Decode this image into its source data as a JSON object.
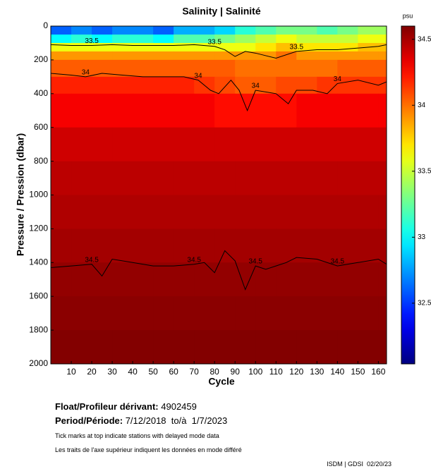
{
  "chart_data": {
    "type": "heatmap",
    "title": "Salinity | Salinité",
    "colorbar_label": "psu",
    "xlabel": "Cycle",
    "ylabel": "Pressure / Pression (dbar)",
    "xlim": [
      0,
      164
    ],
    "ylim": [
      2000,
      0
    ],
    "xticks": [
      10,
      20,
      30,
      40,
      50,
      60,
      70,
      80,
      90,
      100,
      110,
      120,
      130,
      140,
      150,
      160
    ],
    "yticks": [
      0,
      200,
      400,
      600,
      800,
      1000,
      1200,
      1400,
      1600,
      1800,
      2000
    ],
    "colormap": "jet",
    "clim": [
      32.04,
      34.6
    ],
    "cticks": [
      32.5,
      33,
      33.5,
      34,
      34.5
    ],
    "x_bins": [
      0,
      10,
      20,
      30,
      40,
      50,
      60,
      70,
      80,
      90,
      100,
      110,
      120,
      130,
      140,
      150,
      160,
      164
    ],
    "y_bins": [
      0,
      50,
      100,
      150,
      200,
      300,
      400,
      600,
      800,
      1000,
      1200,
      1400,
      1600,
      1800,
      2000
    ],
    "values": [
      [
        32.6,
        32.7,
        32.6,
        32.7,
        32.7,
        32.6,
        32.8,
        32.8,
        32.9,
        33.1,
        33.2,
        33.3,
        33.3,
        33.2,
        33.3,
        33.4,
        33.4
      ],
      [
        33.0,
        33.1,
        33.0,
        33.1,
        33.1,
        33.0,
        33.2,
        33.2,
        33.3,
        33.4,
        33.5,
        33.6,
        33.5,
        33.5,
        33.5,
        33.6,
        33.6
      ],
      [
        33.6,
        33.6,
        33.6,
        33.6,
        33.6,
        33.6,
        33.6,
        33.6,
        33.6,
        33.6,
        33.7,
        33.8,
        33.7,
        33.7,
        33.7,
        33.8,
        33.8
      ],
      [
        33.9,
        33.9,
        33.9,
        33.9,
        33.9,
        33.9,
        33.9,
        33.9,
        33.9,
        33.9,
        33.9,
        34.0,
        33.9,
        33.9,
        33.9,
        33.9,
        33.9
      ],
      [
        34.05,
        34.05,
        34.05,
        34.05,
        34.05,
        34.05,
        34.05,
        34.05,
        34.05,
        34.0,
        34.0,
        34.0,
        34.0,
        34.0,
        34.05,
        34.05,
        34.05
      ],
      [
        34.2,
        34.2,
        34.2,
        34.2,
        34.2,
        34.2,
        34.2,
        34.15,
        34.1,
        34.05,
        34.05,
        34.1,
        34.1,
        34.15,
        34.15,
        34.15,
        34.15
      ],
      [
        34.3,
        34.3,
        34.3,
        34.3,
        34.3,
        34.3,
        34.3,
        34.3,
        34.25,
        34.25,
        34.25,
        34.25,
        34.3,
        34.3,
        34.3,
        34.3,
        34.3
      ],
      [
        34.4,
        34.4,
        34.4,
        34.4,
        34.4,
        34.4,
        34.4,
        34.4,
        34.4,
        34.4,
        34.4,
        34.4,
        34.4,
        34.4,
        34.4,
        34.4,
        34.4
      ],
      [
        34.45,
        34.45,
        34.45,
        34.45,
        34.45,
        34.45,
        34.45,
        34.45,
        34.45,
        34.45,
        34.45,
        34.45,
        34.45,
        34.45,
        34.45,
        34.45,
        34.45
      ],
      [
        34.48,
        34.48,
        34.48,
        34.48,
        34.48,
        34.48,
        34.48,
        34.48,
        34.48,
        34.48,
        34.48,
        34.48,
        34.48,
        34.48,
        34.48,
        34.48,
        34.48
      ],
      [
        34.51,
        34.51,
        34.51,
        34.51,
        34.51,
        34.51,
        34.51,
        34.51,
        34.51,
        34.51,
        34.51,
        34.51,
        34.51,
        34.51,
        34.51,
        34.51,
        34.51
      ],
      [
        34.55,
        34.55,
        34.55,
        34.55,
        34.55,
        34.55,
        34.55,
        34.55,
        34.55,
        34.55,
        34.55,
        34.55,
        34.55,
        34.55,
        34.55,
        34.55,
        34.55
      ],
      [
        34.57,
        34.57,
        34.57,
        34.57,
        34.57,
        34.57,
        34.57,
        34.57,
        34.57,
        34.57,
        34.57,
        34.57,
        34.57,
        34.57,
        34.57,
        34.57,
        34.57
      ],
      [
        34.59,
        34.59,
        34.59,
        34.59,
        34.59,
        34.59,
        34.59,
        34.59,
        34.59,
        34.59,
        34.59,
        34.59,
        34.59,
        34.59,
        34.59,
        34.59,
        34.59
      ]
    ],
    "contour_color": "#000000",
    "contours": [
      {
        "level": 33.5,
        "x": [
          0,
          10,
          20,
          30,
          40,
          50,
          60,
          70,
          80,
          85,
          90,
          95,
          100,
          110,
          120,
          130,
          140,
          150,
          160,
          164
        ],
        "pressure": [
          110,
          115,
          115,
          110,
          115,
          115,
          115,
          110,
          120,
          140,
          180,
          150,
          160,
          190,
          150,
          140,
          140,
          130,
          120,
          110
        ]
      },
      {
        "level": 34,
        "x": [
          0,
          10,
          17,
          25,
          35,
          45,
          55,
          65,
          72,
          78,
          82,
          88,
          92,
          96,
          100,
          110,
          116,
          120,
          128,
          135,
          140,
          150,
          160,
          164
        ],
        "pressure": [
          280,
          290,
          300,
          280,
          290,
          300,
          300,
          300,
          320,
          380,
          400,
          320,
          380,
          500,
          380,
          400,
          460,
          380,
          380,
          400,
          340,
          320,
          350,
          330
        ]
      },
      {
        "level": 34.5,
        "x": [
          0,
          10,
          20,
          25,
          30,
          40,
          50,
          60,
          70,
          75,
          80,
          85,
          90,
          95,
          100,
          105,
          110,
          115,
          120,
          130,
          140,
          150,
          160,
          164
        ],
        "pressure": [
          1430,
          1420,
          1410,
          1480,
          1380,
          1400,
          1420,
          1420,
          1410,
          1400,
          1460,
          1330,
          1390,
          1560,
          1420,
          1440,
          1420,
          1400,
          1370,
          1380,
          1420,
          1400,
          1380,
          1410
        ]
      }
    ]
  },
  "footer": {
    "float_label": "Float/Profileur dérivant:",
    "float_id": "4902459",
    "period_label": "Period/Période:",
    "period": "7/12/2018  to/à  1/7/2023",
    "note_en": "Tick marks at top indicate stations with delayed mode data",
    "note_fr": "Les traits de l'axe supérieur indiquent les données en mode différé",
    "credit": "ISDM | GDSI  02/20/23"
  }
}
